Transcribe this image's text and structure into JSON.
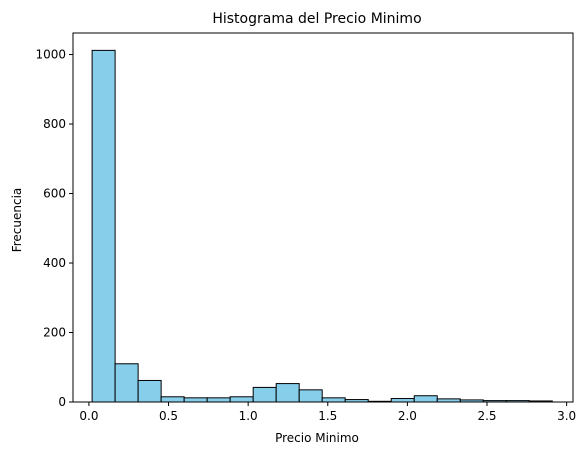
{
  "chart_data": {
    "type": "bar",
    "title": "Histograma del Precio Minimo",
    "xlabel": "Precio Minimo",
    "ylabel": "Frecuencia",
    "xlim": [
      -0.1,
      3.04
    ],
    "ylim": [
      0,
      1062
    ],
    "grid": false,
    "legend": "none",
    "bin_start": 0.02,
    "bin_width": 0.1445,
    "bar_color": "#87ceeb",
    "edge_color": "#000000",
    "values": [
      1012,
      110,
      62,
      15,
      12,
      12,
      15,
      42,
      53,
      35,
      12,
      7,
      2,
      10,
      18,
      9,
      6,
      4,
      4,
      3
    ],
    "x_ticks": [
      {
        "value": 0.0,
        "label": "0.0"
      },
      {
        "value": 0.5,
        "label": "0.5"
      },
      {
        "value": 1.0,
        "label": "1.0"
      },
      {
        "value": 1.5,
        "label": "1.5"
      },
      {
        "value": 2.0,
        "label": "2.0"
      },
      {
        "value": 2.5,
        "label": "2.5"
      },
      {
        "value": 3.0,
        "label": "3.0"
      }
    ],
    "y_ticks": [
      {
        "value": 0,
        "label": "0"
      },
      {
        "value": 200,
        "label": "200"
      },
      {
        "value": 400,
        "label": "400"
      },
      {
        "value": 600,
        "label": "600"
      },
      {
        "value": 800,
        "label": "800"
      },
      {
        "value": 1000,
        "label": "1000"
      }
    ]
  }
}
